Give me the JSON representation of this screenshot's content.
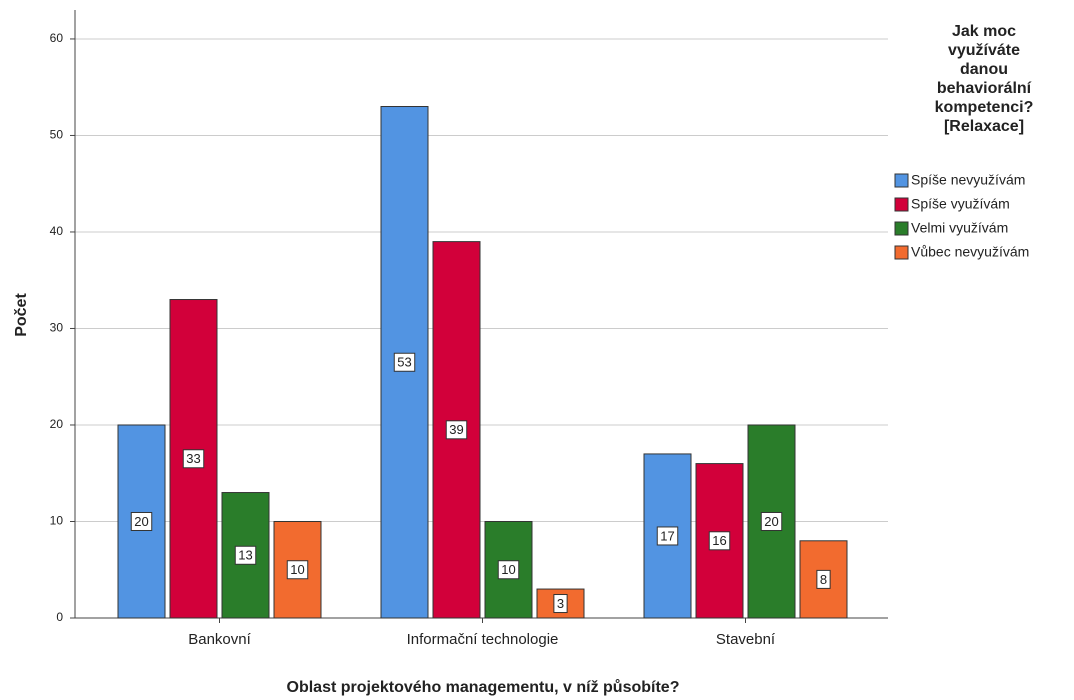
{
  "chart_data": {
    "type": "bar",
    "x_label": "Oblast projektového managementu, v níž působíte?",
    "y_label": "Počet",
    "legend_title": "Jak moc využíváte danou behaviorální kompetenci? [Relaxace]",
    "categories": [
      "Bankovní",
      "Informační technologie",
      "Stavební"
    ],
    "series": [
      {
        "name": "Spíše nevyužívám",
        "color": "#5294e2",
        "values": [
          20,
          53,
          17
        ]
      },
      {
        "name": "Spíše využívám",
        "color": "#d2003a",
        "values": [
          33,
          39,
          16
        ]
      },
      {
        "name": "Velmi využívám",
        "color": "#2a7d2a",
        "values": [
          13,
          10,
          20
        ]
      },
      {
        "name": "Vůbec nevyužívám",
        "color": "#f26b2f",
        "values": [
          10,
          3,
          8
        ]
      }
    ],
    "ylim": [
      0,
      63
    ],
    "yticks": [
      0,
      10,
      20,
      30,
      40,
      50,
      60
    ],
    "grid": true,
    "legend": "right"
  }
}
